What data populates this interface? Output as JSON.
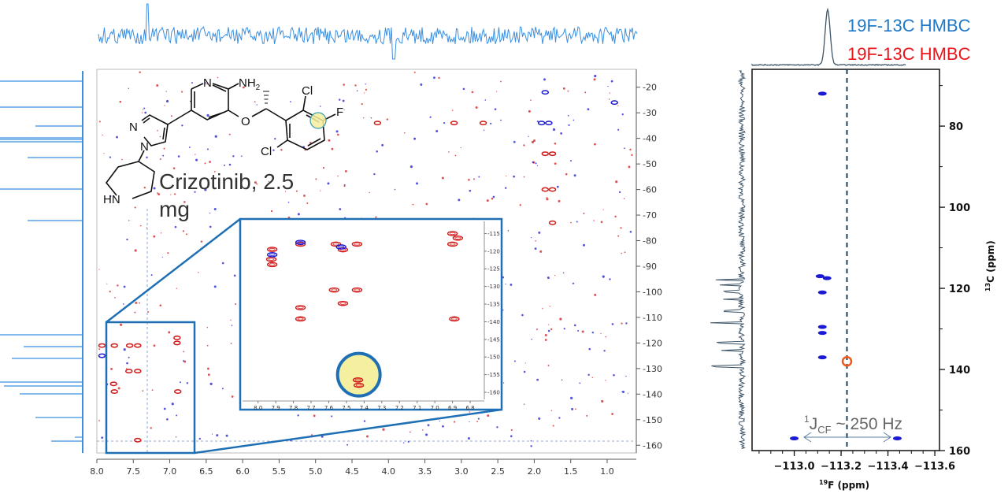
{
  "compound": {
    "label_line1": "Crizotinib, 2.5",
    "label_line2": "mg",
    "atoms": {
      "n_pyridine": "N",
      "nh2": "NH",
      "nh2_sub": "2",
      "o": "O",
      "cl_top": "Cl",
      "f": "F",
      "cl_bottom": "Cl",
      "n_pyrazole_2": "N",
      "n_pyrazole_1": "N",
      "hn": "HN"
    },
    "highlight_color": "#f5f0a0"
  },
  "legend": [
    {
      "label": "19F-13C HMBC",
      "color": "#1f78c8"
    },
    {
      "label": "19F-13C HMBC",
      "color": "#e8161b"
    }
  ],
  "annotation": {
    "j": "J",
    "sup": "1",
    "sub": "CF",
    "rest": " ~ 250 Hz"
  },
  "colors": {
    "positive": "#d21a1a",
    "negative": "#1a1ad2",
    "frame": "#1f6fb5",
    "trace1d": "#3a8fe0",
    "trace_dark": "#3d5468",
    "marker": "#f05a1e"
  },
  "chart_data": [
    {
      "type": "scatter",
      "title": "",
      "x_ticks": [
        "8.0",
        "7.5",
        "7.0",
        "6.5",
        "6.0",
        "5.5",
        "5.0",
        "4.5",
        "4.0",
        "3.5",
        "3.0",
        "2.5",
        "2.0",
        "1.5",
        "1.0"
      ],
      "y_ticks": [
        "20",
        "30",
        "40",
        "50",
        "60",
        "70",
        "80",
        "90",
        "100",
        "110",
        "120",
        "130",
        "140",
        "150",
        "160"
      ],
      "xlim": [
        8.0,
        0.6
      ],
      "ylim": [
        13,
        163
      ],
      "x_reversed": true,
      "y_axis_side": "right",
      "series": [
        {
          "color": "positive",
          "points": [
            [
              7.93,
              121
            ],
            [
              7.76,
              121
            ],
            [
              7.55,
              121
            ],
            [
              7.44,
              121
            ],
            [
              6.9,
              120
            ],
            [
              6.9,
              118
            ],
            [
              7.56,
              131
            ],
            [
              7.44,
              131
            ],
            [
              7.77,
              136
            ],
            [
              7.76,
              139
            ],
            [
              6.89,
              139
            ],
            [
              7.44,
              158
            ],
            [
              4.15,
              34
            ],
            [
              3.1,
              34
            ],
            [
              2.7,
              34
            ],
            [
              1.85,
              46
            ],
            [
              1.75,
              46
            ],
            [
              1.85,
              60
            ],
            [
              1.75,
              60
            ],
            [
              1.75,
              73
            ]
          ]
        },
        {
          "color": "negative",
          "points": [
            [
              7.93,
              125
            ],
            [
              1.9,
              34
            ],
            [
              1.8,
              34
            ],
            [
              1.85,
              22
            ],
            [
              0.9,
              26
            ]
          ]
        }
      ]
    },
    {
      "type": "scatter",
      "title": "",
      "x_ticks": [
        "8.0",
        "7.9",
        "7.8",
        "7.7",
        "7.6",
        "7.5",
        "7.4",
        "7.3",
        "7.2",
        "7.1",
        "7.0",
        "6.9",
        "6.8"
      ],
      "y_ticks": [
        "-115",
        "-120",
        "-125",
        "-130",
        "-135",
        "-140",
        "-145",
        "-150",
        "-155",
        "-160"
      ],
      "xlim": [
        8.07,
        6.72
      ],
      "ylim": [
        112,
        162
      ],
      "x_reversed": true,
      "series": [
        {
          "color": "positive",
          "points": [
            [
              7.92,
              119.5
            ],
            [
              7.925,
              122.3
            ],
            [
              7.92,
              123.8
            ],
            [
              7.76,
              118
            ],
            [
              7.56,
              118
            ],
            [
              7.52,
              119.6
            ],
            [
              7.44,
              118
            ],
            [
              6.9,
              115
            ],
            [
              6.87,
              116.3
            ],
            [
              6.9,
              118
            ],
            [
              7.57,
              131
            ],
            [
              7.44,
              131
            ],
            [
              7.52,
              134.8
            ],
            [
              7.76,
              136
            ],
            [
              7.76,
              139.2
            ],
            [
              6.89,
              139.2
            ],
            [
              7.435,
              156.5
            ],
            [
              7.43,
              158
            ]
          ]
        },
        {
          "color": "negative",
          "points": [
            [
              7.92,
              121
            ],
            [
              7.76,
              117.5
            ],
            [
              7.53,
              118.8
            ]
          ]
        }
      ],
      "highlight": [
        7.43,
        155
      ]
    },
    {
      "type": "scatter",
      "title": "",
      "xlabel_sup": "19",
      "xlabel": "F (ppm)",
      "ylabel_sup": "13",
      "ylabel": "C (ppm)",
      "x_ticks": [
        "−113.0",
        "−113.2",
        "−113.4",
        "−113.6"
      ],
      "y_ticks": [
        "80",
        "100",
        "120",
        "140",
        "160"
      ],
      "xlim": [
        -112.82,
        -113.62
      ],
      "ylim": [
        66,
        160
      ],
      "x_reversed": true,
      "reference_line_x": -113.225,
      "series": [
        {
          "color": "negative",
          "points": [
            [
              -113.12,
              72
            ],
            [
              -113.11,
              117
            ],
            [
              -113.14,
              117.5
            ],
            [
              -113.12,
              121
            ],
            [
              -113.12,
              129.5
            ],
            [
              -113.12,
              131
            ],
            [
              -113.12,
              137
            ],
            [
              -113.0,
              157
            ],
            [
              -113.44,
              157
            ]
          ]
        }
      ],
      "marker_point": [
        -113.225,
        138
      ]
    }
  ]
}
